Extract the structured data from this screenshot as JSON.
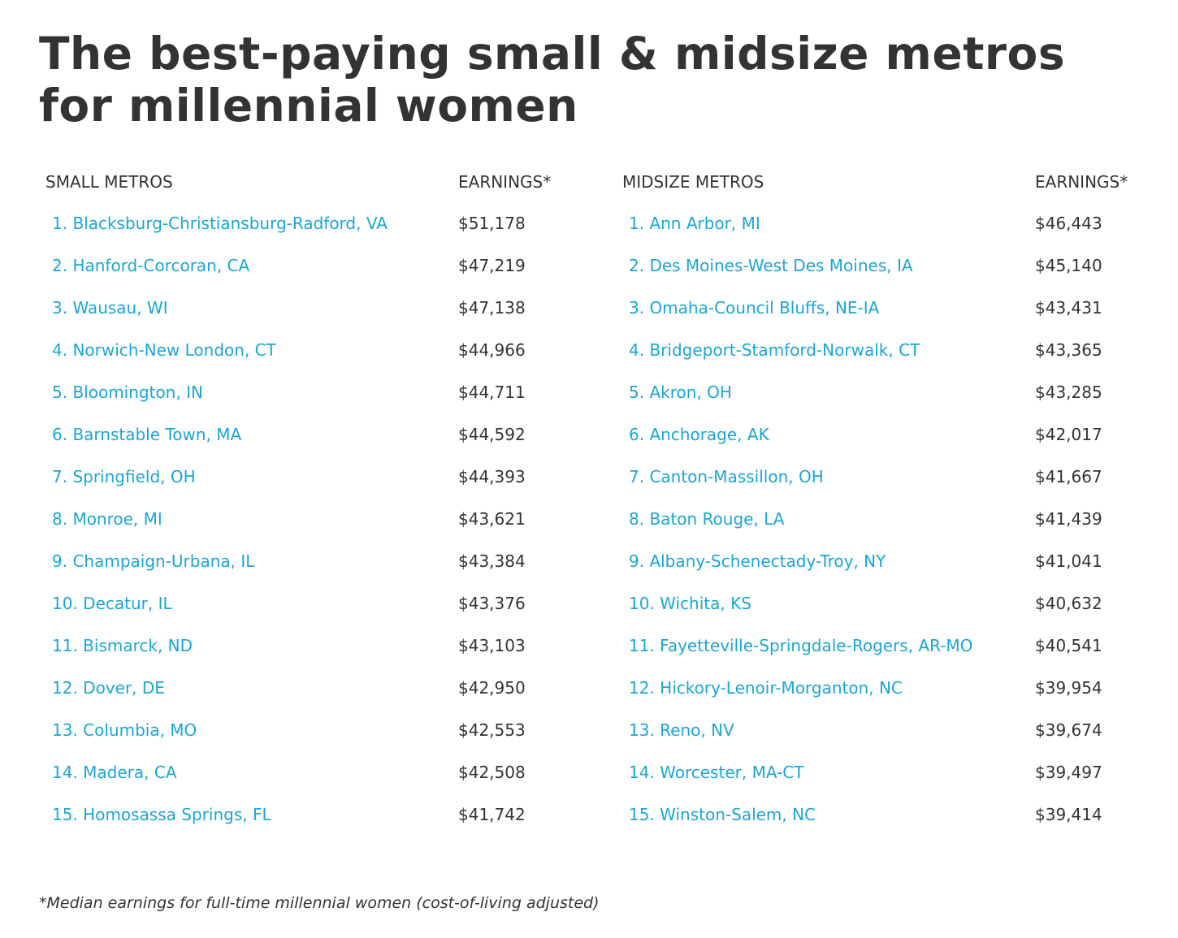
{
  "title": "The best-paying small & midsize metros for millennial women",
  "colors": {
    "text": "#333333",
    "link": "#1aa6d8",
    "background": "#ffffff"
  },
  "small": {
    "heading": "SMALL METROS",
    "earnings_heading": "EARNINGS*",
    "rows": [
      {
        "metro": "1. Blacksburg-Christiansburg-Radford, VA",
        "earnings": "$51,178"
      },
      {
        "metro": "2. Hanford-Corcoran, CA",
        "earnings": "$47,219"
      },
      {
        "metro": "3. Wausau, WI",
        "earnings": "$47,138"
      },
      {
        "metro": "4. Norwich-New London, CT",
        "earnings": "$44,966"
      },
      {
        "metro": "5. Bloomington, IN",
        "earnings": "$44,711"
      },
      {
        "metro": "6. Barnstable Town, MA",
        "earnings": "$44,592"
      },
      {
        "metro": "7. Springfield, OH",
        "earnings": "$44,393"
      },
      {
        "metro": "8. Monroe, MI",
        "earnings": "$43,621"
      },
      {
        "metro": "9. Champaign-Urbana, IL",
        "earnings": "$43,384"
      },
      {
        "metro": "10. Decatur, IL",
        "earnings": "$43,376"
      },
      {
        "metro": "11. Bismarck, ND",
        "earnings": "$43,103"
      },
      {
        "metro": "12. Dover, DE",
        "earnings": "$42,950"
      },
      {
        "metro": "13. Columbia, MO",
        "earnings": "$42,553"
      },
      {
        "metro": "14. Madera, CA",
        "earnings": "$42,508"
      },
      {
        "metro": "15. Homosassa Springs, FL",
        "earnings": "$41,742"
      }
    ]
  },
  "midsize": {
    "heading": "MIDSIZE METROS",
    "earnings_heading": "EARNINGS*",
    "rows": [
      {
        "metro": "1. Ann Arbor, MI",
        "earnings": "$46,443"
      },
      {
        "metro": "2. Des Moines-West Des Moines, IA",
        "earnings": "$45,140"
      },
      {
        "metro": "3. Omaha-Council Bluffs, NE-IA",
        "earnings": "$43,431"
      },
      {
        "metro": "4. Bridgeport-Stamford-Norwalk, CT",
        "earnings": "$43,365"
      },
      {
        "metro": "5. Akron, OH",
        "earnings": "$43,285"
      },
      {
        "metro": "6. Anchorage, AK",
        "earnings": "$42,017"
      },
      {
        "metro": "7. Canton-Massillon, OH",
        "earnings": "$41,667"
      },
      {
        "metro": "8. Baton Rouge, LA",
        "earnings": "$41,439"
      },
      {
        "metro": "9. Albany-Schenectady-Troy, NY",
        "earnings": "$41,041"
      },
      {
        "metro": "10. Wichita, KS",
        "earnings": "$40,632"
      },
      {
        "metro": "11. Fayetteville-Springdale-Rogers, AR-MO",
        "earnings": "$40,541"
      },
      {
        "metro": "12. Hickory-Lenoir-Morganton, NC",
        "earnings": "$39,954"
      },
      {
        "metro": "13. Reno, NV",
        "earnings": "$39,674"
      },
      {
        "metro": "14. Worcester, MA-CT",
        "earnings": "$39,497"
      },
      {
        "metro": "15. Winston-Salem, NC",
        "earnings": "$39,414"
      }
    ]
  },
  "footnote": "*Median earnings for full-time millennial women (cost-of-living adjusted)"
}
